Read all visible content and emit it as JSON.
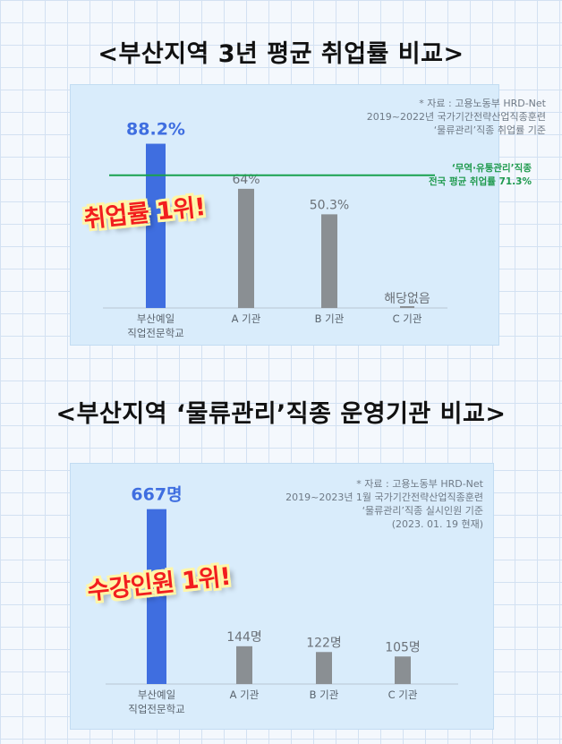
{
  "titles": {
    "employment": "<부산지역 3년 평균 취업률 비교>",
    "trainees": "<부산지역 ‘물류관리’직종 운영기관 비교>"
  },
  "colors": {
    "highlight_bar": "#3f6ee0",
    "other_bar": "#8a8f93",
    "average_line": "#19a24f",
    "badge_text": "#f21e1e",
    "badge_outline": "#fff6a8"
  },
  "employment_chart": {
    "source_note": [
      "* 자료 : 고용노동부 HRD-Net",
      "2019~2022년 국가기간전략산업직종훈련",
      "‘물류관리’직종 취업률 기준"
    ],
    "average_label": [
      "‘무역·유통관리’직종",
      "전국 평균 취업률 71.3%"
    ],
    "badge": "취업률 1위!"
  },
  "trainee_chart": {
    "source_note": [
      "* 자료 : 고용노동부 HRD-Net",
      "2019~2023년 1월 국가기간전략산업직종훈련",
      "‘물류관리’직종 실시인원 기준",
      "(2023. 01. 19 현재)"
    ],
    "badge": "수강인원 1위!"
  },
  "chart_data": [
    {
      "type": "bar",
      "title": "<부산지역 3년 평균 취업률 비교>",
      "categories": [
        [
          "부산예일",
          "직업전문학교"
        ],
        "A 기관",
        "B 기관",
        "C 기관"
      ],
      "values": [
        88.2,
        64,
        50.3,
        0
      ],
      "data_labels": [
        "88.2%",
        "64%",
        "50.3%",
        "해당없음"
      ],
      "reference_line": {
        "value": 71.3
      },
      "ylim": [
        0,
        100
      ],
      "grid": false
    },
    {
      "type": "bar",
      "title": "<부산지역 ‘물류관리’직종 운영기관 비교>",
      "categories": [
        [
          "부산예일",
          "직업전문학교"
        ],
        "A 기관",
        "B 기관",
        "C 기관"
      ],
      "values": [
        667,
        144,
        122,
        105
      ],
      "data_labels": [
        "667명",
        "144명",
        "122명",
        "105명"
      ],
      "ylim": [
        0,
        700
      ],
      "grid": false
    }
  ]
}
